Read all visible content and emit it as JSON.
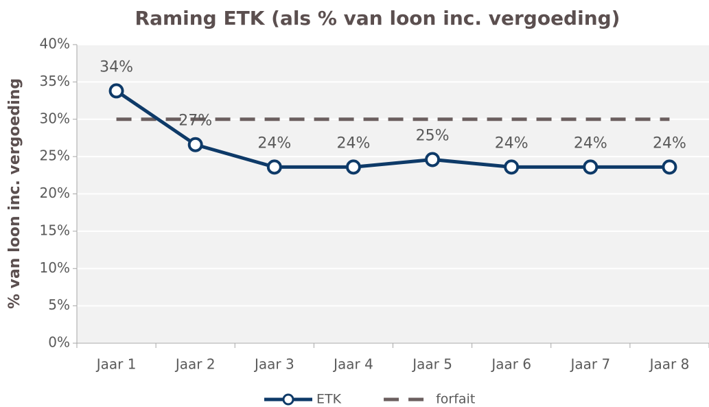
{
  "chart_data": {
    "type": "line",
    "title": "Raming ETK (als % van loon inc. vergoeding)",
    "y_label": "% van loon inc. vergoeding",
    "categories": [
      "Jaar 1",
      "Jaar 2",
      "Jaar 3",
      "Jaar 4",
      "Jaar 5",
      "Jaar 6",
      "Jaar 7",
      "Jaar 8"
    ],
    "series": [
      {
        "name": "ETK",
        "color": "#0e3a68",
        "style": "solid",
        "marker": true,
        "values": [
          33.8,
          26.6,
          23.6,
          23.6,
          24.6,
          23.6,
          23.6,
          23.6
        ],
        "value_labels": [
          "34%",
          "27%",
          "24%",
          "24%",
          "25%",
          "24%",
          "24%",
          "24%"
        ]
      },
      {
        "name": "forfait",
        "color": "#6b5f5f",
        "style": "dashed",
        "marker": false,
        "values": [
          30,
          30,
          30,
          30,
          30,
          30,
          30,
          30
        ]
      }
    ],
    "ylim": [
      0,
      40
    ],
    "yticks": [
      {
        "value": 0,
        "label": "0%"
      },
      {
        "value": 5,
        "label": "5%"
      },
      {
        "value": 10,
        "label": "10%"
      },
      {
        "value": 15,
        "label": "15%"
      },
      {
        "value": 20,
        "label": "20%"
      },
      {
        "value": 25,
        "label": "25%"
      },
      {
        "value": 30,
        "label": "30%"
      },
      {
        "value": 35,
        "label": "35%"
      },
      {
        "value": 40,
        "label": "40%"
      }
    ],
    "grid": true,
    "legend": "bottom"
  }
}
